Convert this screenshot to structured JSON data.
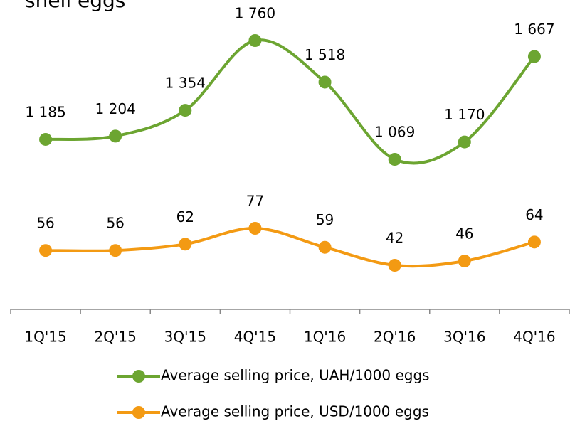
{
  "chart_data": {
    "type": "line",
    "title": "shell eggs",
    "categories": [
      "1Q'15",
      "2Q'15",
      "3Q'15",
      "4Q'15",
      "1Q'16",
      "2Q'16",
      "3Q'16",
      "4Q'16"
    ],
    "series": [
      {
        "name": "Average selling price, UAH/1000 eggs",
        "color": "#6ca531",
        "values": [
          1185,
          1204,
          1354,
          1760,
          1518,
          1069,
          1170,
          1667
        ],
        "value_labels": [
          "1 185",
          "1 204",
          "1 354",
          "1 760",
          "1 518",
          "1 069",
          "1 170",
          "1 667"
        ]
      },
      {
        "name": "Average selling price, USD/1000 eggs",
        "color": "#f39a13",
        "axis": "y2",
        "values": [
          56,
          56,
          62,
          77,
          59,
          42,
          46,
          64
        ]
      }
    ],
    "legend": "bottom"
  }
}
